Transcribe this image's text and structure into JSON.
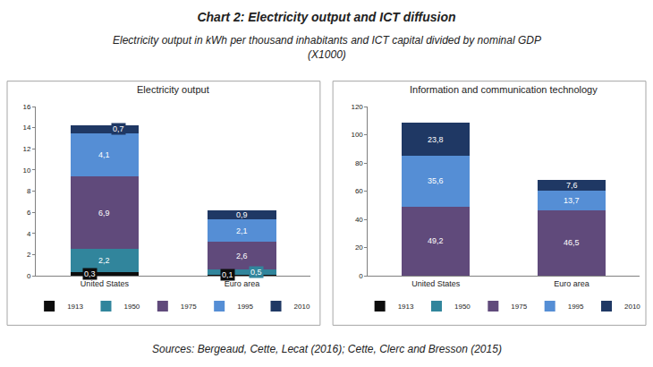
{
  "title": "Chart 2: Electricity output and ICT diffusion",
  "subtitle": [
    "Electricity output in kWh per thousand inhabitants and ICT capital divided by nominal GDP",
    "(X1000)"
  ],
  "source": "Sources: Bergeaud, Cette, Lecat (2016); Cette, Clerc and Bresson (2015)",
  "chart_data": [
    {
      "type": "bar",
      "title": "Electricity output",
      "stacked": true,
      "data_labels": true,
      "legend": "bottom",
      "grid": false,
      "categories": [
        "United States",
        "Euro area"
      ],
      "ylim": [
        0,
        16
      ],
      "yticks": [
        0,
        2,
        4,
        6,
        8,
        10,
        12,
        14,
        16
      ],
      "series": [
        {
          "name": "1913",
          "color": "#0d0d0d",
          "values": [
            0.3,
            0.1
          ],
          "value_labels": [
            "0,3",
            "0,1"
          ]
        },
        {
          "name": "1950",
          "color": "#31859c",
          "values": [
            2.2,
            0.5
          ],
          "value_labels": [
            "2,2",
            "0,5"
          ]
        },
        {
          "name": "1975",
          "color": "#604a7b",
          "values": [
            6.9,
            2.6
          ],
          "value_labels": [
            "6,9",
            "2,6"
          ]
        },
        {
          "name": "1995",
          "color": "#558ed5",
          "values": [
            4.1,
            2.1
          ],
          "value_labels": [
            "4,1",
            "2,1"
          ]
        },
        {
          "name": "2010",
          "color": "#1f3864",
          "values": [
            0.7,
            0.9
          ],
          "value_labels": [
            "0,7",
            "0,9"
          ]
        }
      ]
    },
    {
      "type": "bar",
      "title": "Information and communication technology",
      "stacked": true,
      "data_labels": true,
      "legend": "bottom",
      "grid": false,
      "categories": [
        "United States",
        "Euro area"
      ],
      "ylim": [
        0,
        120
      ],
      "yticks": [
        0,
        20,
        40,
        60,
        80,
        100,
        120
      ],
      "series": [
        {
          "name": "1913",
          "color": "#0d0d0d",
          "values": [
            null,
            null
          ],
          "value_labels": [
            null,
            null
          ]
        },
        {
          "name": "1950",
          "color": "#31859c",
          "values": [
            null,
            null
          ],
          "value_labels": [
            null,
            null
          ]
        },
        {
          "name": "1975",
          "color": "#604a7b",
          "values": [
            49.2,
            46.5
          ],
          "value_labels": [
            "49,2",
            "46,5"
          ]
        },
        {
          "name": "1995",
          "color": "#558ed5",
          "values": [
            35.6,
            13.7
          ],
          "value_labels": [
            "35,6",
            "13,7"
          ]
        },
        {
          "name": "2010",
          "color": "#1f3864",
          "values": [
            23.8,
            7.6
          ],
          "value_labels": [
            "23,8",
            "7,6"
          ]
        }
      ]
    }
  ]
}
